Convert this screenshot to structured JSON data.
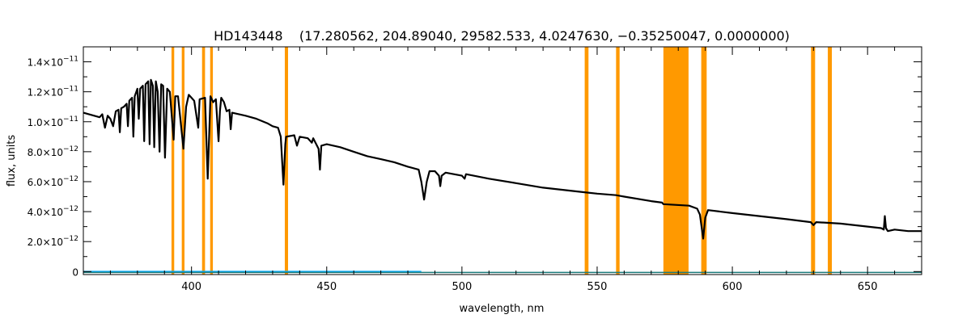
{
  "chart_data": {
    "type": "line",
    "title": "HD143448    (17.280562, 204.89040, 29582.533, 4.0247630, −0.35250047, 0.0000000)",
    "xlabel": "wavelength, nm",
    "ylabel": "flux, units",
    "xlim": [
      360,
      670
    ],
    "ylim": [
      -2e-13,
      1.5e-11
    ],
    "x_ticks": [
      400,
      450,
      500,
      550,
      600,
      650
    ],
    "x_tick_labels": [
      "400",
      "450",
      "500",
      "550",
      "600",
      "650"
    ],
    "y_ticks": [
      0,
      2e-12,
      4e-12,
      6e-12,
      8e-12,
      1e-11,
      1.2e-11,
      1.4e-11
    ],
    "y_tick_labels": [
      {
        "mant": "0",
        "exp": ""
      },
      {
        "mant": "2.0×10",
        "exp": "−12"
      },
      {
        "mant": "4.0×10",
        "exp": "−12"
      },
      {
        "mant": "6.0×10",
        "exp": "−12"
      },
      {
        "mant": "8.0×10",
        "exp": "−12"
      },
      {
        "mant": "1.0×10",
        "exp": "−11"
      },
      {
        "mant": "1.2×10",
        "exp": "−11"
      },
      {
        "mant": "1.4×10",
        "exp": "−11"
      }
    ],
    "grid": false,
    "masked_regions_color": "#ff9900",
    "masked_regions": [
      [
        392.6,
        393.6
      ],
      [
        396.4,
        397.4
      ],
      [
        403.9,
        405.0
      ],
      [
        406.9,
        407.9
      ],
      [
        434.5,
        435.7
      ],
      [
        545.4,
        546.8
      ],
      [
        557.0,
        558.3
      ],
      [
        574.5,
        583.8
      ],
      [
        588.5,
        590.5
      ],
      [
        629.1,
        630.6
      ],
      [
        635.3,
        636.8
      ]
    ],
    "series": [
      {
        "color": "#000000",
        "points": [
          [
            360,
            1.06e-11
          ],
          [
            364,
            1.04e-11
          ],
          [
            366,
            1.03e-11
          ],
          [
            367,
            1.05e-11
          ],
          [
            368,
            9.6e-12
          ],
          [
            369,
            1.04e-11
          ],
          [
            370,
            1.02e-11
          ],
          [
            371,
            9.7e-12
          ],
          [
            372,
            1.07e-11
          ],
          [
            373,
            1.08e-11
          ],
          [
            373.5,
            9.3e-12
          ],
          [
            374,
            1.09e-11
          ],
          [
            375,
            1.1e-11
          ],
          [
            376,
            1.12e-11
          ],
          [
            376.5,
            9.7e-12
          ],
          [
            377,
            1.14e-11
          ],
          [
            378,
            1.16e-11
          ],
          [
            378.5,
            9e-12
          ],
          [
            379,
            1.17e-11
          ],
          [
            380,
            1.22e-11
          ],
          [
            380.5,
            1.02e-11
          ],
          [
            381,
            1.22e-11
          ],
          [
            382,
            1.24e-11
          ],
          [
            382.5,
            8.7e-12
          ],
          [
            383,
            1.25e-11
          ],
          [
            384,
            1.27e-11
          ],
          [
            384.5,
            8.5e-12
          ],
          [
            385,
            1.28e-11
          ],
          [
            385.7,
            1.24e-11
          ],
          [
            386.2,
            8.3e-12
          ],
          [
            386.8,
            1.27e-11
          ],
          [
            387.5,
            1.2e-11
          ],
          [
            388.2,
            8e-12
          ],
          [
            388.8,
            1.25e-11
          ],
          [
            389.5,
            1.24e-11
          ],
          [
            390.2,
            7.6e-12
          ],
          [
            391,
            1.22e-11
          ],
          [
            392,
            1.2e-11
          ],
          [
            393.4,
            8.8e-12
          ],
          [
            394,
            1.17e-11
          ],
          [
            395,
            1.17e-11
          ],
          [
            397,
            8.2e-12
          ],
          [
            398,
            1.1e-11
          ],
          [
            399,
            1.18e-11
          ],
          [
            400,
            1.16e-11
          ],
          [
            401,
            1.14e-11
          ],
          [
            402.5,
            9.6e-12
          ],
          [
            403,
            1.15e-11
          ],
          [
            405,
            1.16e-11
          ],
          [
            406,
            6.2e-12
          ],
          [
            407,
            1.17e-11
          ],
          [
            408,
            1.13e-11
          ],
          [
            409,
            1.15e-11
          ],
          [
            410,
            8.7e-12
          ],
          [
            410.5,
            1.07e-11
          ],
          [
            411,
            1.16e-11
          ],
          [
            412,
            1.13e-11
          ],
          [
            413,
            1.07e-11
          ],
          [
            414,
            1.08e-11
          ],
          [
            414.5,
            9.5e-12
          ],
          [
            415,
            1.06e-11
          ],
          [
            420,
            1.04e-11
          ],
          [
            424,
            1.02e-11
          ],
          [
            428,
            9.9e-12
          ],
          [
            430,
            9.7e-12
          ],
          [
            432,
            9.6e-12
          ],
          [
            433,
            9e-12
          ],
          [
            434,
            5.8e-12
          ],
          [
            434.7,
            8.5e-12
          ],
          [
            435,
            9e-12
          ],
          [
            438,
            9.1e-12
          ],
          [
            439,
            8.4e-12
          ],
          [
            440,
            9e-12
          ],
          [
            443,
            8.9e-12
          ],
          [
            444.5,
            8.6e-12
          ],
          [
            445,
            8.9e-12
          ],
          [
            447,
            8.2e-12
          ],
          [
            447.5,
            6.8e-12
          ],
          [
            448,
            8.4e-12
          ],
          [
            450,
            8.5e-12
          ],
          [
            455,
            8.3e-12
          ],
          [
            460,
            8e-12
          ],
          [
            465,
            7.7e-12
          ],
          [
            470,
            7.5e-12
          ],
          [
            475,
            7.3e-12
          ],
          [
            480,
            7e-12
          ],
          [
            484,
            6.8e-12
          ],
          [
            485,
            6e-12
          ],
          [
            486,
            4.8e-12
          ],
          [
            487,
            6e-12
          ],
          [
            488,
            6.7e-12
          ],
          [
            490,
            6.7e-12
          ],
          [
            491.5,
            6.4e-12
          ],
          [
            492,
            5.7e-12
          ],
          [
            492.5,
            6.4e-12
          ],
          [
            494,
            6.6e-12
          ],
          [
            500,
            6.4e-12
          ],
          [
            501,
            6.2e-12
          ],
          [
            501.5,
            6.5e-12
          ],
          [
            510,
            6.2e-12
          ],
          [
            520,
            5.9e-12
          ],
          [
            530,
            5.6e-12
          ],
          [
            540,
            5.4e-12
          ],
          [
            545,
            5.3e-12
          ],
          [
            550,
            5.2e-12
          ],
          [
            557,
            5.1e-12
          ],
          [
            560,
            5e-12
          ],
          [
            570,
            4.7e-12
          ],
          [
            574,
            4.6e-12
          ],
          [
            574.5,
            4.5e-12
          ],
          [
            584,
            4.4e-12
          ],
          [
            587,
            4.2e-12
          ],
          [
            588,
            3.8e-12
          ],
          [
            589.2,
            2.2e-12
          ],
          [
            590,
            3.6e-12
          ],
          [
            591,
            4.1e-12
          ],
          [
            600,
            3.9e-12
          ],
          [
            610,
            3.7e-12
          ],
          [
            620,
            3.5e-12
          ],
          [
            629,
            3.3e-12
          ],
          [
            630,
            3.1e-12
          ],
          [
            631,
            3.3e-12
          ],
          [
            640,
            3.2e-12
          ],
          [
            650,
            3e-12
          ],
          [
            655,
            2.9e-12
          ],
          [
            656,
            2.8e-12
          ],
          [
            656.4,
            3.7e-12
          ],
          [
            656.8,
            2.9e-12
          ],
          [
            657.5,
            2.7e-12
          ],
          [
            660,
            2.8e-12
          ],
          [
            665,
            2.7e-12
          ],
          [
            670,
            2.7e-12
          ]
        ]
      },
      {
        "color": "#00aaff",
        "points": [
          [
            360,
            1e-14
          ],
          [
            485,
            1e-14
          ]
        ]
      },
      {
        "color": "#1b7a7a",
        "points": [
          [
            360,
            -6e-14
          ],
          [
            670,
            -6e-14
          ]
        ]
      }
    ]
  }
}
